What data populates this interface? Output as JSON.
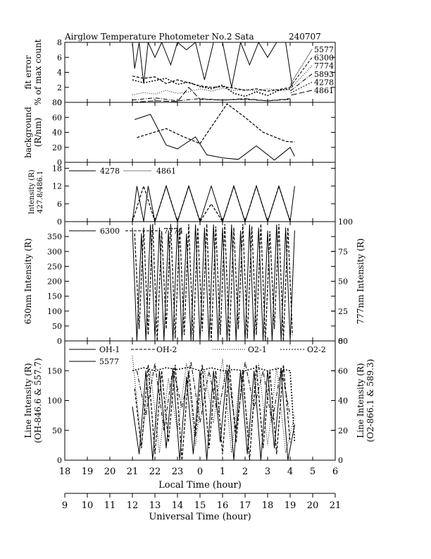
{
  "title": "Airglow Temperature Photometer No.2  Sata",
  "date": "240707",
  "chart_data": [
    {
      "id": "fit-error",
      "type": "line",
      "ylabel_lines": [
        "fit error",
        "% of max count"
      ],
      "ylim": [
        0,
        8
      ],
      "yticks": [
        0,
        2,
        4,
        6,
        8
      ],
      "legend": [
        "5577",
        "6300",
        "7774",
        "5893",
        "4278",
        "4861"
      ],
      "series": [
        {
          "name": "5577",
          "x": [
            21.0,
            21.1,
            21.3,
            21.5,
            21.7,
            22.0,
            22.3,
            22.7,
            23.0,
            23.4,
            23.8,
            24.2,
            24.6,
            25.0,
            25.4,
            25.8,
            26.2,
            26.6,
            27.0,
            27.4,
            27.8,
            28.1
          ],
          "y": [
            8,
            4.5,
            8,
            2.5,
            8,
            6,
            8,
            5,
            8,
            7,
            8,
            3,
            8,
            8,
            2,
            8,
            5,
            8,
            6,
            8,
            8,
            2
          ]
        },
        {
          "name": "6300",
          "x": [
            21.0,
            21.5,
            22.0,
            22.5,
            23.0,
            23.5,
            24.0,
            24.5,
            25.0,
            25.5,
            26.0,
            26.5,
            27.0,
            27.5,
            28.0,
            28.1
          ],
          "y": [
            3.5,
            3.2,
            3.4,
            2.5,
            3.0,
            2.6,
            2.2,
            2.0,
            2.1,
            1.9,
            1.6,
            1.8,
            1.5,
            1.7,
            2.0,
            2.4
          ]
        },
        {
          "name": "7774",
          "x": [
            21.0,
            21.5,
            22.0,
            22.5,
            23.0,
            23.5,
            24.0,
            24.5,
            25.0,
            25.5,
            26.0,
            26.5,
            27.0,
            27.5,
            28.0
          ],
          "y": [
            1.0,
            1.3,
            1.1,
            1.6,
            1.2,
            1.4,
            1.8,
            1.5,
            1.9,
            1.6,
            1.7,
            1.5,
            1.8,
            1.6,
            1.7
          ]
        },
        {
          "name": "5893",
          "x": [
            21.0,
            22.0,
            23.0,
            24.0,
            25.0,
            26.0,
            27.0,
            28.0
          ],
          "y": [
            0.3,
            0.6,
            0.2,
            0.5,
            0.3,
            0.4,
            0.2,
            0.5
          ]
        },
        {
          "name": "4278",
          "x": [
            21.0,
            21.5,
            22.0,
            22.5,
            23.0,
            23.5,
            24.0,
            24.5,
            25.0,
            25.5,
            26.0,
            26.5,
            27.0,
            27.5,
            28.0
          ],
          "y": [
            3.0,
            2.6,
            2.9,
            3.2,
            2.4,
            2.7,
            2.1,
            1.8,
            2.3,
            1.2,
            0.8,
            1.4,
            0.9,
            1.6,
            1.8
          ]
        },
        {
          "name": "4861",
          "x": [
            21.0,
            22.0,
            23.0,
            23.5,
            24.0,
            25.0,
            26.0,
            27.0,
            28.0
          ],
          "y": [
            0.0,
            0.2,
            0.1,
            2.0,
            0.4,
            0.3,
            0.5,
            0.2,
            0.4
          ]
        }
      ]
    },
    {
      "id": "background",
      "type": "line",
      "ylabel_lines": [
        "background",
        "(R/nm)"
      ],
      "ylim": [
        0,
        80
      ],
      "yticks": [
        0,
        20,
        40,
        60,
        80
      ],
      "series": [
        {
          "name": "",
          "x": [
            21.1,
            21.8,
            22.5,
            23.0,
            23.8,
            24.3,
            25.0,
            25.7,
            26.5,
            27.3,
            28.0,
            28.2
          ],
          "y": [
            57,
            64,
            23,
            18,
            34,
            10,
            6,
            4,
            22,
            3,
            20,
            8
          ]
        },
        {
          "name": "",
          "x": [
            21.2,
            22.5,
            23.2,
            24.0,
            25.2,
            26.0,
            26.8,
            27.8,
            28.2
          ],
          "y": [
            33,
            45,
            35,
            25,
            78,
            60,
            40,
            28,
            27
          ]
        }
      ]
    },
    {
      "id": "blue-intensity",
      "type": "line",
      "ylabel_lines": [
        "Intensity (R)",
        "427.8/486.1"
      ],
      "ylim": [
        0,
        20
      ],
      "yticks": [
        0,
        6,
        12,
        18
      ],
      "legend": [
        "4278",
        "4861"
      ],
      "series": [
        {
          "name": "4278",
          "x": [
            21.0,
            21.2,
            21.5,
            21.7,
            22.0,
            22.5,
            23.0,
            23.5,
            24.0,
            24.5,
            25.0,
            25.5,
            26.0,
            26.5,
            27.0,
            27.5,
            28.0,
            28.2
          ],
          "y": [
            0,
            12,
            0,
            12,
            0,
            12,
            0,
            12,
            0,
            12,
            0,
            12,
            0,
            12,
            0,
            12,
            0,
            12
          ]
        },
        {
          "name": "4861",
          "x": [
            21.0,
            21.5,
            22.0,
            22.5,
            23.0,
            23.5,
            24.0,
            24.5,
            25.0,
            25.5,
            26.0,
            26.5,
            27.0,
            27.5,
            28.0
          ],
          "y": [
            0,
            12,
            0,
            12,
            0,
            12,
            0,
            6,
            0,
            12,
            0,
            12,
            0,
            12,
            0
          ]
        }
      ]
    },
    {
      "id": "red-intensity",
      "type": "line",
      "ylabel_lines": [
        "630nm Intensity (R)"
      ],
      "y2label_lines": [
        "777nm Intensity (R)"
      ],
      "ylim": [
        0,
        400
      ],
      "yticks": [
        0,
        50,
        100,
        150,
        200,
        250,
        300,
        350
      ],
      "y2lim": [
        0,
        100
      ],
      "y2ticks": [
        0,
        25,
        50,
        75,
        100
      ],
      "legend": [
        "6300",
        "7774"
      ],
      "series": [
        {
          "name": "6300",
          "x": [
            21.0,
            21.2,
            21.4,
            21.6,
            21.8,
            22.0,
            22.2,
            22.4,
            22.6,
            22.8,
            23.0,
            23.2,
            23.4,
            23.6,
            23.8,
            24.0,
            24.2,
            24.4,
            24.6,
            24.8,
            25.0,
            25.2,
            25.4,
            25.6,
            25.8,
            26.0,
            26.2,
            26.4,
            26.6,
            26.8,
            27.0,
            27.2,
            27.4,
            27.6,
            27.8,
            28.0,
            28.2
          ],
          "y": [
            380,
            0,
            360,
            0,
            390,
            10,
            380,
            0,
            370,
            0,
            390,
            0,
            360,
            0,
            390,
            0,
            380,
            0,
            390,
            0,
            380,
            0,
            390,
            0,
            370,
            0,
            390,
            0,
            380,
            0,
            370,
            0,
            390,
            0,
            380,
            0,
            370
          ]
        },
        {
          "name": "7774",
          "x": [
            21.1,
            21.3,
            21.5,
            21.7,
            21.9,
            22.1,
            22.3,
            22.5,
            22.7,
            22.9,
            23.1,
            23.3,
            23.5,
            23.7,
            23.9,
            24.1,
            24.3,
            24.5,
            24.7,
            24.9,
            25.1,
            25.3,
            25.5,
            25.7,
            25.9,
            26.1,
            26.3,
            26.5,
            26.7,
            26.9,
            27.1,
            27.3,
            27.5,
            27.7,
            27.9,
            28.1
          ],
          "y": [
            90,
            10,
            95,
            5,
            98,
            0,
            92,
            10,
            98,
            2,
            95,
            5,
            98,
            0,
            95,
            8,
            98,
            0,
            96,
            5,
            98,
            0,
            95,
            10,
            98,
            2,
            96,
            5,
            98,
            0,
            92,
            10,
            98,
            0,
            95,
            5
          ]
        }
      ]
    },
    {
      "id": "line-intensity",
      "type": "line",
      "ylabel_lines": [
        "Line Intensity (R)",
        "(OH-846.6 & 557.7)"
      ],
      "y2label_lines": [
        "Line Intensity (R)",
        "(O2-866.1 & 589.3)"
      ],
      "ylim": [
        0,
        200
      ],
      "yticks": [
        0,
        50,
        100,
        150
      ],
      "y2lim": [
        0,
        80
      ],
      "y2ticks": [
        0,
        20,
        40,
        60,
        80
      ],
      "legend": [
        "OH-1",
        "OH-2",
        "O2-1",
        "O2-2",
        "5577"
      ],
      "series": [
        {
          "name": "OH-1",
          "x": [
            21.0,
            21.3,
            21.6,
            21.9,
            22.2,
            22.5,
            22.8,
            23.1,
            23.4,
            23.7,
            24.0,
            24.3,
            24.6,
            24.9,
            25.2,
            25.5,
            25.8,
            26.1,
            26.4,
            26.7,
            27.0,
            27.3,
            27.6,
            27.9,
            28.2
          ],
          "y": [
            90,
            10,
            150,
            0,
            150,
            20,
            150,
            0,
            140,
            10,
            150,
            0,
            150,
            30,
            150,
            0,
            150,
            10,
            150,
            0,
            150,
            20,
            150,
            0,
            60
          ]
        },
        {
          "name": "OH-2",
          "x": [
            21.1,
            21.4,
            21.7,
            22.0,
            22.3,
            22.6,
            22.9,
            23.2,
            23.5,
            23.8,
            24.1,
            24.4,
            24.7,
            25.0,
            25.3,
            25.6,
            25.9,
            26.2,
            26.5,
            26.8,
            27.1,
            27.4,
            27.7,
            28.0
          ],
          "y": [
            120,
            20,
            160,
            10,
            150,
            30,
            160,
            0,
            150,
            40,
            160,
            20,
            150,
            10,
            160,
            30,
            150,
            0,
            160,
            20,
            150,
            10,
            160,
            30
          ]
        },
        {
          "name": "O2-1",
          "x": [
            21.0,
            21.4,
            21.8,
            22.2,
            22.6,
            23.0,
            23.4,
            23.8,
            24.2,
            24.6,
            25.0,
            25.4,
            25.8,
            26.2,
            26.6,
            27.0,
            27.4,
            27.8,
            28.2
          ],
          "y": [
            70,
            10,
            60,
            5,
            55,
            20,
            65,
            10,
            60,
            25,
            68,
            5,
            60,
            15,
            65,
            10,
            62,
            5,
            30
          ]
        },
        {
          "name": "O2-2",
          "x": [
            21.2,
            21.6,
            22.0,
            22.4,
            22.8,
            23.2,
            23.6,
            24.0,
            24.4,
            24.8,
            25.2,
            25.6,
            26.0,
            26.4,
            26.8,
            27.2,
            27.6,
            28.0
          ],
          "y": [
            60,
            30,
            65,
            20,
            62,
            35,
            66,
            25,
            60,
            30,
            64,
            20,
            66,
            35,
            60,
            25,
            62,
            30
          ]
        },
        {
          "name": "5577",
          "x": [
            21.0,
            21.5,
            22.0,
            22.5,
            23.0,
            23.5,
            24.0,
            24.5,
            25.0,
            25.5,
            26.0,
            26.5,
            27.0,
            27.5,
            28.0,
            28.2
          ],
          "y": [
            150,
            155,
            150,
            155,
            152,
            156,
            150,
            155,
            150,
            152,
            150,
            155,
            150,
            154,
            150,
            30
          ]
        }
      ]
    }
  ],
  "x_axis": {
    "label": "Local Time (hour)",
    "lim": [
      18,
      30
    ],
    "ticks": [
      18,
      19,
      20,
      21,
      22,
      23,
      24,
      25,
      26,
      27,
      28,
      29,
      30
    ],
    "ticklabels": [
      "18",
      "19",
      "20",
      "21",
      "22",
      "23",
      "0",
      "1",
      "2",
      "3",
      "4",
      "5",
      "6"
    ]
  },
  "ut_axis": {
    "label": "Universal Time (hour)",
    "lim": [
      9,
      21
    ],
    "ticks": [
      9,
      10,
      11,
      12,
      13,
      14,
      15,
      16,
      17,
      18,
      19,
      20,
      21
    ],
    "ticklabels": [
      "9",
      "10",
      "11",
      "12",
      "13",
      "14",
      "15",
      "16",
      "17",
      "18",
      "19",
      "20",
      "21"
    ]
  }
}
